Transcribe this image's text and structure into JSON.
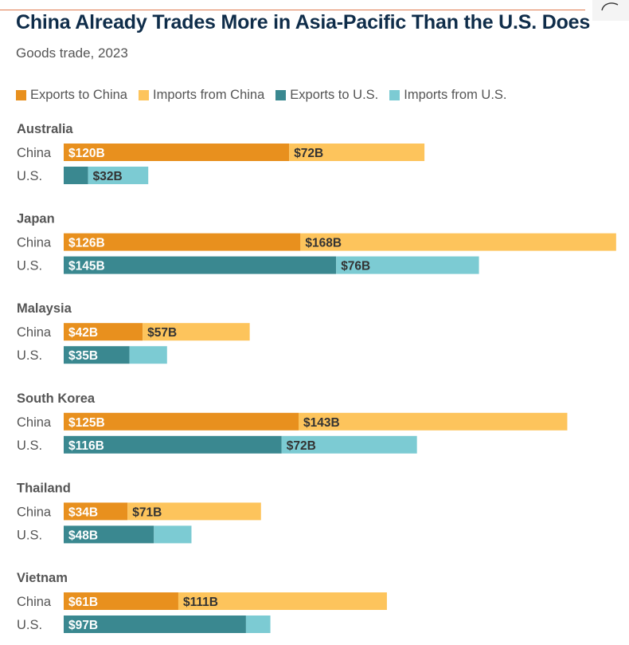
{
  "title": "China Already Trades More in Asia-Pacific Than the U.S. Does",
  "subtitle": "Goods trade, 2023",
  "colors": {
    "exports_china": "#e8901e",
    "imports_china": "#fdc45c",
    "exports_us": "#3a8890",
    "imports_us": "#7ccbd3"
  },
  "chart_data": {
    "type": "bar",
    "orientation": "horizontal",
    "stacked": true,
    "unit": "$B",
    "legend": {
      "position": "top-left",
      "entries": [
        "Exports to China",
        "Imports from China",
        "Exports to U.S.",
        "Imports from U.S."
      ]
    },
    "groups": [
      {
        "name": "Australia",
        "rows": [
          {
            "label": "China",
            "segments": [
              {
                "series": "Exports to China",
                "value": 120,
                "label": "$120B"
              },
              {
                "series": "Imports from China",
                "value": 72,
                "label": "$72B"
              }
            ]
          },
          {
            "label": "U.S.",
            "segments": [
              {
                "series": "Exports to U.S.",
                "value": 13,
                "label": ""
              },
              {
                "series": "Imports from U.S.",
                "value": 32,
                "label": "$32B"
              }
            ]
          }
        ]
      },
      {
        "name": "Japan",
        "rows": [
          {
            "label": "China",
            "segments": [
              {
                "series": "Exports to China",
                "value": 126,
                "label": "$126B"
              },
              {
                "series": "Imports from China",
                "value": 168,
                "label": "$168B"
              }
            ]
          },
          {
            "label": "U.S.",
            "segments": [
              {
                "series": "Exports to U.S.",
                "value": 145,
                "label": "$145B"
              },
              {
                "series": "Imports from U.S.",
                "value": 76,
                "label": "$76B"
              }
            ]
          }
        ]
      },
      {
        "name": "Malaysia",
        "rows": [
          {
            "label": "China",
            "segments": [
              {
                "series": "Exports to China",
                "value": 42,
                "label": "$42B"
              },
              {
                "series": "Imports from China",
                "value": 57,
                "label": "$57B"
              }
            ]
          },
          {
            "label": "U.S.",
            "segments": [
              {
                "series": "Exports to U.S.",
                "value": 35,
                "label": "$35B"
              },
              {
                "series": "Imports from U.S.",
                "value": 20,
                "label": ""
              }
            ]
          }
        ]
      },
      {
        "name": "South Korea",
        "rows": [
          {
            "label": "China",
            "segments": [
              {
                "series": "Exports to China",
                "value": 125,
                "label": "$125B"
              },
              {
                "series": "Imports from China",
                "value": 143,
                "label": "$143B"
              }
            ]
          },
          {
            "label": "U.S.",
            "segments": [
              {
                "series": "Exports to U.S.",
                "value": 116,
                "label": "$116B"
              },
              {
                "series": "Imports from U.S.",
                "value": 72,
                "label": "$72B"
              }
            ]
          }
        ]
      },
      {
        "name": "Thailand",
        "rows": [
          {
            "label": "China",
            "segments": [
              {
                "series": "Exports to China",
                "value": 34,
                "label": "$34B"
              },
              {
                "series": "Imports from China",
                "value": 71,
                "label": "$71B"
              }
            ]
          },
          {
            "label": "U.S.",
            "segments": [
              {
                "series": "Exports to U.S.",
                "value": 48,
                "label": "$48B"
              },
              {
                "series": "Imports from U.S.",
                "value": 20,
                "label": ""
              }
            ]
          }
        ]
      },
      {
        "name": "Vietnam",
        "rows": [
          {
            "label": "China",
            "segments": [
              {
                "series": "Exports to China",
                "value": 61,
                "label": "$61B"
              },
              {
                "series": "Imports from China",
                "value": 111,
                "label": "$111B"
              }
            ]
          },
          {
            "label": "U.S.",
            "segments": [
              {
                "series": "Exports to U.S.",
                "value": 97,
                "label": "$97B"
              },
              {
                "series": "Imports from U.S.",
                "value": 13,
                "label": ""
              }
            ]
          }
        ]
      }
    ]
  }
}
